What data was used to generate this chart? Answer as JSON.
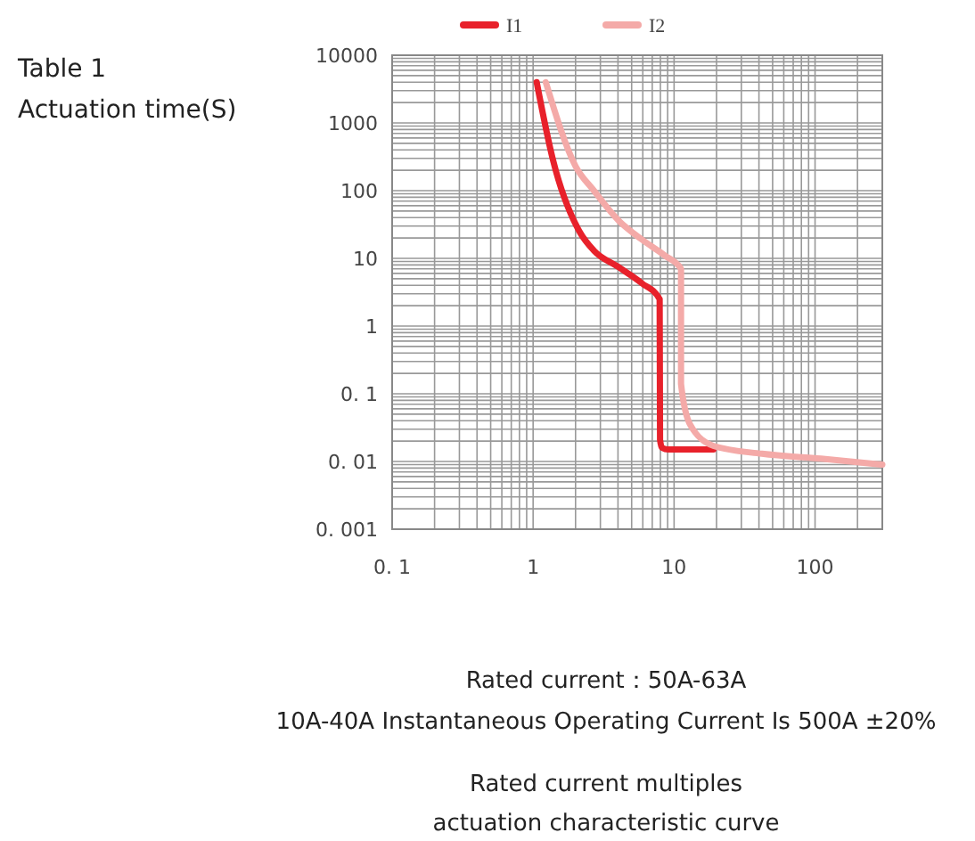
{
  "chart_data": {
    "type": "line",
    "ylabel": "Actuation time(S)",
    "log": "xy",
    "grid": true,
    "legend": "top",
    "line_style": "solid",
    "marker": "none",
    "xlim": [
      0.1,
      300
    ],
    "xticks": [
      {
        "value": 0.1,
        "label": "0. 1"
      },
      1,
      10,
      100
    ],
    "ylim": [
      0.001,
      10000
    ],
    "yticks": [
      {
        "value": 0.001,
        "label": "0. 001"
      },
      {
        "value": 0.01,
        "label": "0. 01"
      },
      {
        "value": 0.1,
        "label": "0. 1"
      },
      1,
      10,
      100,
      1000,
      10000
    ],
    "series": [
      {
        "name": "I1",
        "color": "#e8212b",
        "x": [
          1.06,
          1.38,
          2.13,
          2.7,
          4.05,
          5.9,
          7.9,
          7.95,
          8.2,
          9.1,
          19
        ],
        "values": [
          4000,
          290,
          25,
          13,
          7.4,
          4.3,
          2.5,
          0.021,
          0.016,
          0.015,
          0.015
        ]
      },
      {
        "name": "I2",
        "color": "#f4aaa8",
        "x": [
          1.23,
          2.0,
          2.7,
          4.05,
          5.9,
          8.6,
          11.2,
          11.2,
          13,
          19,
          42,
          110,
          300
        ],
        "values": [
          4000,
          230,
          100,
          36,
          19,
          11,
          7,
          0.14,
          0.035,
          0.017,
          0.013,
          0.011,
          0.009
        ]
      }
    ],
    "annotations": [
      "Table 1",
      "Rated current：50A-63A",
      "10A-40A Instantaneous Operating Current Is 500A ±20%",
      "Rated current multiples",
      "actuation characteristic curve"
    ]
  }
}
